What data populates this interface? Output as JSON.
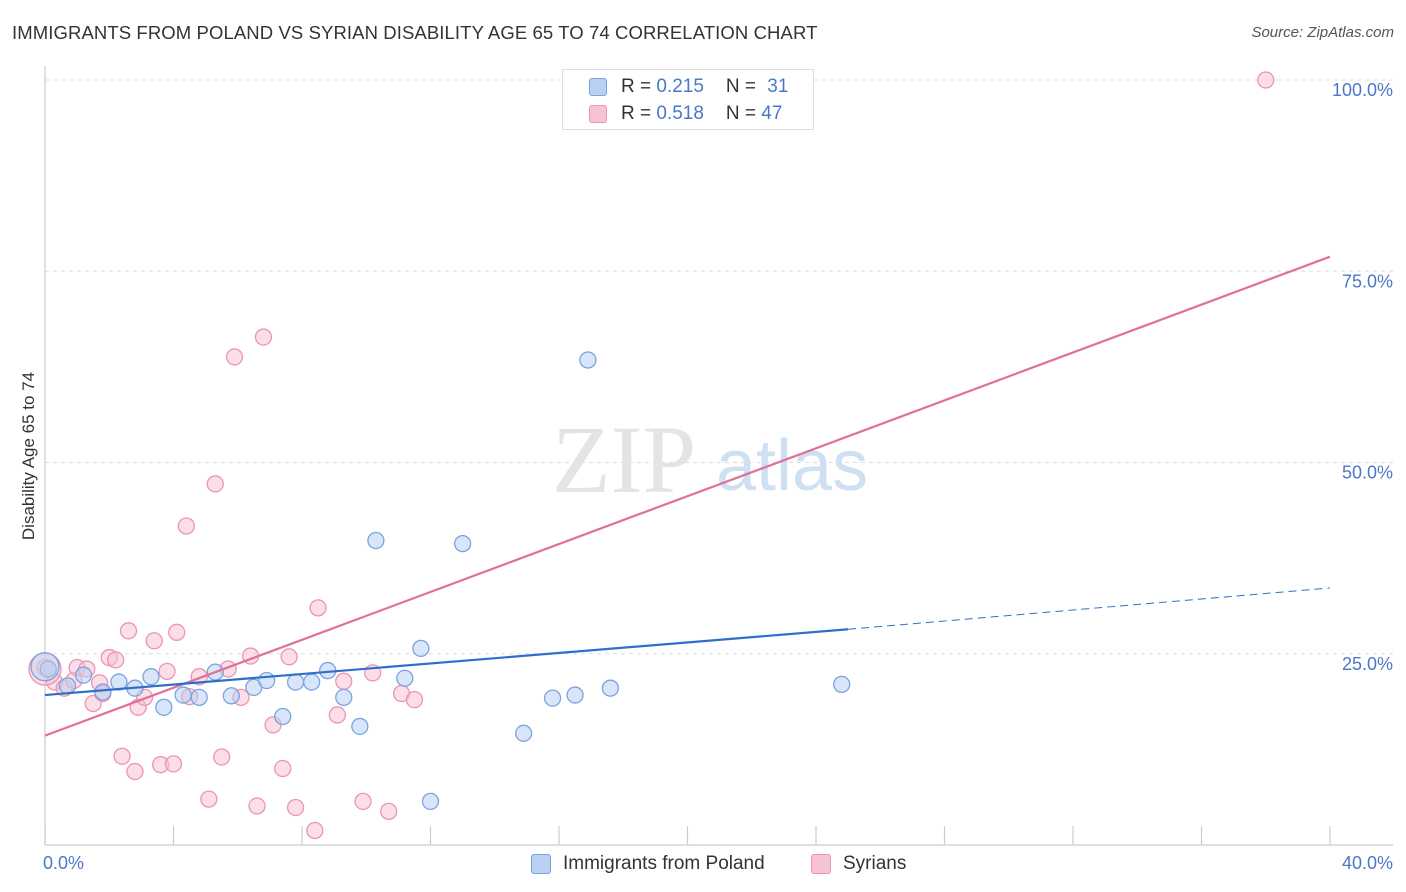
{
  "title": "IMMIGRANTS FROM POLAND VS SYRIAN DISABILITY AGE 65 TO 74 CORRELATION CHART",
  "source": "Source: ZipAtlas.com",
  "watermark": {
    "zip": "ZIP",
    "atlas": "atlas"
  },
  "colors": {
    "blue_fill": "#b9d0f2",
    "blue_stroke": "#7aa3e0",
    "blue_line": "#2f6fcc",
    "pink_fill": "#f7c2d4",
    "pink_stroke": "#e896b2",
    "pink_line": "#e0709a",
    "tick": "#4a78c8",
    "grid": "#dddddd"
  },
  "legend": {
    "rows": [
      {
        "r_label": "R = ",
        "r_value": "0.215",
        "n_label": "N = ",
        "n_value": "31"
      },
      {
        "r_label": "R = ",
        "r_value": "0.518",
        "n_label": "N = ",
        "n_value": "47"
      }
    ]
  },
  "chart_data": {
    "type": "scatter",
    "title": "IMMIGRANTS FROM POLAND VS SYRIAN DISABILITY AGE 65 TO 74 CORRELATION CHART",
    "xlabel": "",
    "ylabel": "Disability Age 65 to 74",
    "xlim": [
      0,
      40
    ],
    "ylim": [
      0,
      100
    ],
    "x_tick_labels": [
      "0.0%",
      "40.0%"
    ],
    "y_ticks": [
      25,
      50,
      75,
      100
    ],
    "y_tick_labels": [
      "25.0%",
      "50.0%",
      "75.0%",
      "100.0%"
    ],
    "legend_placement": "top-center",
    "series": [
      {
        "name": "Immigrants from Poland",
        "r": 0.215,
        "n": 31,
        "trend": {
          "x0": 0,
          "y0": 19.6,
          "x1": 25,
          "y1": 28.2,
          "dash_to_x": 40,
          "dash_to_y": 33.6
        },
        "points": [
          [
            0.1,
            23.0
          ],
          [
            0.7,
            20.8
          ],
          [
            1.2,
            22.2
          ],
          [
            1.8,
            20.0
          ],
          [
            2.3,
            21.3
          ],
          [
            2.8,
            20.5
          ],
          [
            3.3,
            22.0
          ],
          [
            3.7,
            18.0
          ],
          [
            4.3,
            19.6
          ],
          [
            4.8,
            19.3
          ],
          [
            5.3,
            22.6
          ],
          [
            5.8,
            19.5
          ],
          [
            6.5,
            20.6
          ],
          [
            6.9,
            21.5
          ],
          [
            7.4,
            16.8
          ],
          [
            7.8,
            21.3
          ],
          [
            8.3,
            21.3
          ],
          [
            8.8,
            22.8
          ],
          [
            9.3,
            19.3
          ],
          [
            9.8,
            15.5
          ],
          [
            10.3,
            39.8
          ],
          [
            11.2,
            21.8
          ],
          [
            11.7,
            25.7
          ],
          [
            12.0,
            5.7
          ],
          [
            13.0,
            39.4
          ],
          [
            14.9,
            14.6
          ],
          [
            15.8,
            19.2
          ],
          [
            16.5,
            19.6
          ],
          [
            16.9,
            63.4
          ],
          [
            17.6,
            20.5
          ],
          [
            24.8,
            21.0
          ]
        ]
      },
      {
        "name": "Syrians",
        "r": 0.518,
        "n": 47,
        "trend": {
          "x0": 0,
          "y0": 14.3,
          "x1": 40,
          "y1": 76.9
        },
        "points": [
          [
            0.0,
            23.2
          ],
          [
            0.3,
            21.3
          ],
          [
            0.6,
            20.5
          ],
          [
            0.9,
            21.5
          ],
          [
            1.0,
            23.2
          ],
          [
            1.3,
            23.0
          ],
          [
            1.5,
            18.5
          ],
          [
            1.7,
            21.2
          ],
          [
            1.8,
            19.8
          ],
          [
            2.0,
            24.5
          ],
          [
            2.2,
            24.2
          ],
          [
            2.4,
            11.6
          ],
          [
            2.6,
            28.0
          ],
          [
            2.8,
            9.6
          ],
          [
            2.9,
            18.0
          ],
          [
            3.1,
            19.3
          ],
          [
            3.4,
            26.7
          ],
          [
            3.6,
            10.5
          ],
          [
            3.8,
            22.7
          ],
          [
            4.0,
            10.6
          ],
          [
            4.1,
            27.8
          ],
          [
            4.4,
            41.7
          ],
          [
            4.5,
            19.4
          ],
          [
            4.8,
            22.0
          ],
          [
            5.1,
            6.0
          ],
          [
            5.3,
            47.2
          ],
          [
            5.5,
            11.5
          ],
          [
            5.7,
            23.0
          ],
          [
            5.9,
            63.8
          ],
          [
            6.1,
            19.3
          ],
          [
            6.4,
            24.7
          ],
          [
            6.6,
            5.1
          ],
          [
            6.8,
            66.4
          ],
          [
            7.1,
            15.7
          ],
          [
            7.4,
            10.0
          ],
          [
            7.6,
            24.6
          ],
          [
            7.8,
            4.9
          ],
          [
            8.4,
            1.9
          ],
          [
            8.5,
            31.0
          ],
          [
            9.1,
            17.0
          ],
          [
            9.3,
            21.4
          ],
          [
            9.9,
            5.7
          ],
          [
            10.2,
            22.5
          ],
          [
            10.7,
            4.4
          ],
          [
            11.1,
            19.8
          ],
          [
            11.5,
            19.0
          ],
          [
            38.0,
            100.0
          ]
        ]
      }
    ]
  }
}
